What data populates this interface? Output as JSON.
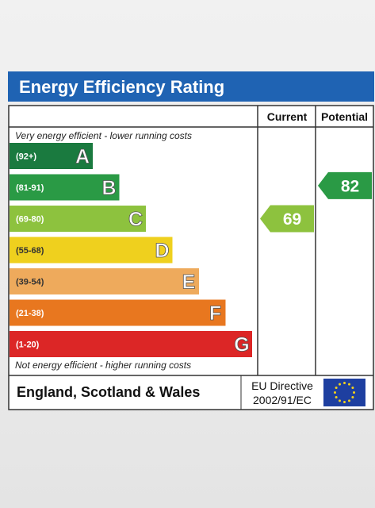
{
  "title": "Energy Efficiency Rating",
  "headers": {
    "current": "Current",
    "potential": "Potential"
  },
  "top_note": "Very energy efficient - lower running costs",
  "bottom_note": "Not energy efficient - higher running costs",
  "footer": {
    "country": "England, Scotland & Wales",
    "directive_line1": "EU Directive",
    "directive_line2": "2002/91/EC"
  },
  "colors": {
    "title_bar": "#1f63b3",
    "band_A": "#1a7a3f",
    "band_B": "#2a9a45",
    "band_C": "#8dc23e",
    "band_D": "#efd01e",
    "band_E": "#eeaa5c",
    "band_F": "#e8771f",
    "band_G": "#dc2626",
    "flag": "#1e3fa0",
    "stars": "#f3d21a"
  },
  "chart_data": {
    "type": "bar",
    "categories": [
      "A",
      "B",
      "C",
      "D",
      "E",
      "F",
      "G"
    ],
    "ranges": [
      "(92+)",
      "(81-91)",
      "(69-80)",
      "(55-68)",
      "(39-54)",
      "(21-38)",
      "(1-20)"
    ],
    "band_min": [
      92,
      81,
      69,
      55,
      39,
      21,
      1
    ],
    "current": {
      "value": 69,
      "band": "C",
      "label": "69"
    },
    "potential": {
      "value": 82,
      "band": "B",
      "label": "82"
    }
  }
}
